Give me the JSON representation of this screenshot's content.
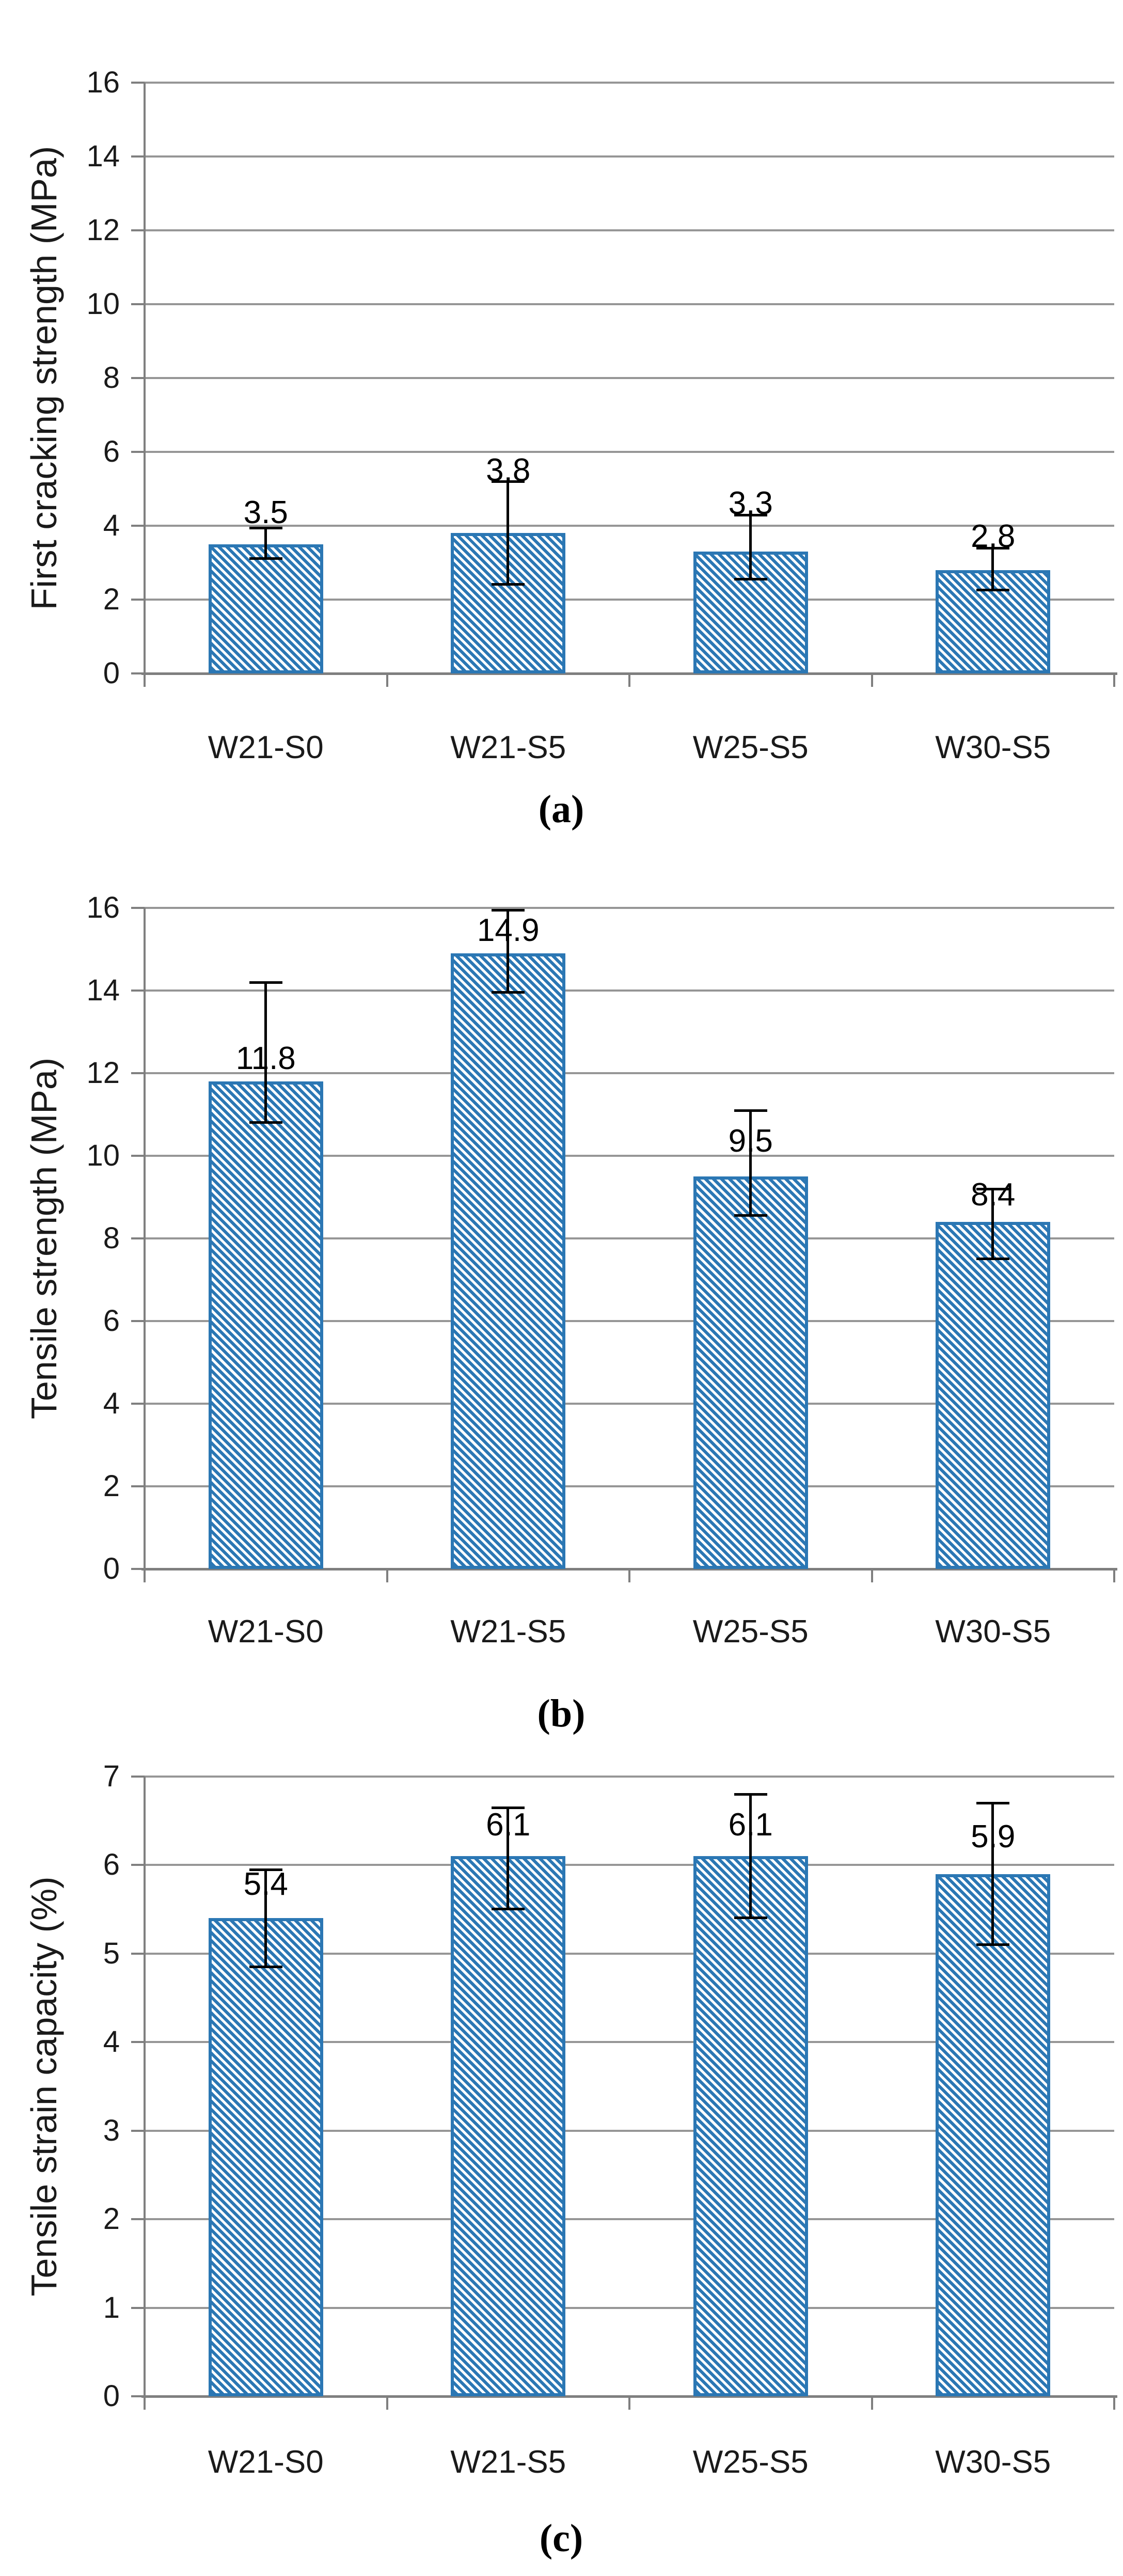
{
  "figure": {
    "background": "#ffffff"
  },
  "colors": {
    "bar_stripe": "#2b77b4",
    "bar_border": "#2b77b4",
    "bar_background": "#ffffff",
    "gridline": "#969696",
    "axis": "#7f7f7f",
    "error_bar": "#000000",
    "text": "#1a1a1a",
    "data_label": "#000000"
  },
  "chart_data": [
    {
      "id": "a",
      "type": "bar",
      "caption": "(a)",
      "ylabel": "First cracking strength (MPa)",
      "xlabel": "",
      "ylim": [
        0,
        16
      ],
      "ytick_step": 2,
      "yticks": [
        "16",
        "14",
        "12",
        "10",
        "8",
        "6",
        "4",
        "2",
        "0"
      ],
      "grid": true,
      "legend": "none",
      "bar_fill": "diagonal-hatch",
      "categories": [
        "W21-S0",
        "W21-S5",
        "W25-S5",
        "W30-S5"
      ],
      "values": [
        3.5,
        3.8,
        3.3,
        2.8
      ],
      "data_labels": [
        "3.5",
        "3.8",
        "3.3",
        "2.8"
      ],
      "data_label_y": [
        4.35,
        5.5,
        4.6,
        3.7
      ],
      "error_low": [
        3.1,
        2.4,
        2.55,
        2.25
      ],
      "error_high": [
        3.95,
        5.2,
        4.3,
        3.4
      ]
    },
    {
      "id": "b",
      "type": "bar",
      "caption": "(b)",
      "ylabel": "Tensile strength (MPa)",
      "xlabel": "",
      "ylim": [
        0,
        16
      ],
      "ytick_step": 2,
      "yticks": [
        "16",
        "14",
        "12",
        "10",
        "8",
        "6",
        "4",
        "2",
        "0"
      ],
      "grid": true,
      "legend": "none",
      "bar_fill": "diagonal-hatch",
      "categories": [
        "W21-S0",
        "W21-S5",
        "W25-S5",
        "W30-S5"
      ],
      "values": [
        11.8,
        14.9,
        9.5,
        8.4
      ],
      "data_labels": [
        "11.8",
        "14.9",
        "9.5",
        "8.4"
      ],
      "data_label_y": [
        12.35,
        15.45,
        10.35,
        9.05
      ],
      "error_low": [
        10.8,
        13.95,
        8.55,
        7.5
      ],
      "error_high": [
        14.2,
        15.95,
        11.1,
        9.2
      ]
    },
    {
      "id": "c",
      "type": "bar",
      "caption": "(c)",
      "ylabel": "Tensile strain capacity (%)",
      "xlabel": "",
      "ylim": [
        0,
        7
      ],
      "ytick_step": 1,
      "yticks": [
        "7",
        "6",
        "5",
        "4",
        "3",
        "2",
        "1",
        "0"
      ],
      "grid": true,
      "legend": "none",
      "bar_fill": "diagonal-hatch",
      "categories": [
        "W21-S0",
        "W21-S5",
        "W25-S5",
        "W30-S5"
      ],
      "values": [
        5.4,
        6.1,
        6.1,
        5.9
      ],
      "data_labels": [
        "5.4",
        "6.1",
        "6.1",
        "5.9"
      ],
      "data_label_y": [
        5.78,
        6.45,
        6.45,
        6.32
      ],
      "error_low": [
        4.85,
        5.5,
        5.4,
        5.1
      ],
      "error_high": [
        5.95,
        6.65,
        6.8,
        6.7
      ]
    }
  ]
}
